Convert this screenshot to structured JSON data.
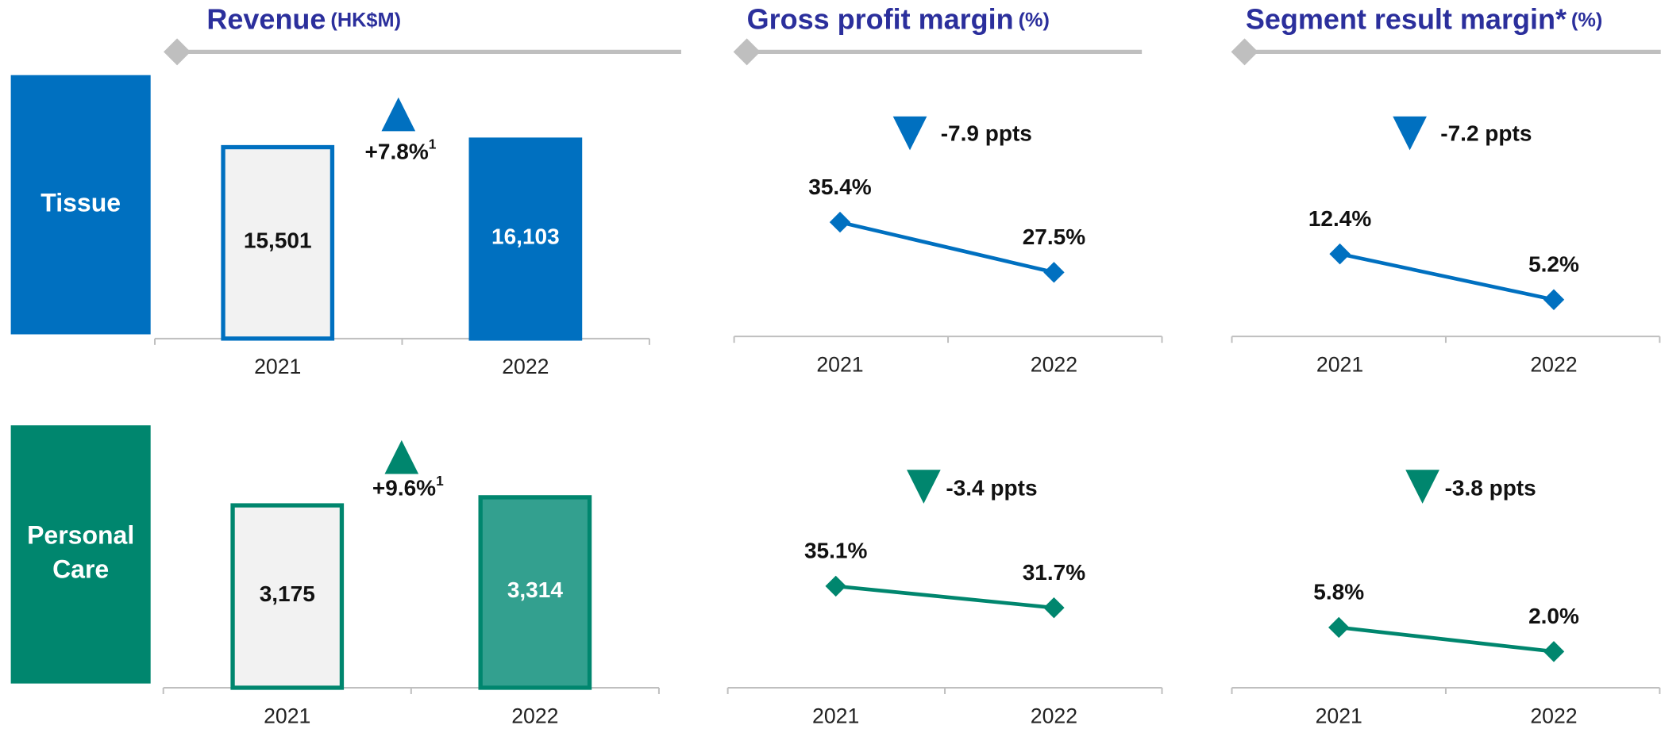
{
  "headers": [
    {
      "title": "Revenue",
      "unit": "(HK$M)"
    },
    {
      "title": "Gross profit margin",
      "unit": "(%)"
    },
    {
      "title": "Segment result margin*",
      "unit": "(%)"
    }
  ],
  "segments": [
    {
      "name": "Tissue",
      "color": "#0070c0"
    },
    {
      "name": "Personal Care",
      "color": "#00866e"
    }
  ],
  "chart_data": [
    {
      "type": "bar",
      "categories": [
        "2021",
        "2022"
      ],
      "values": [
        15501,
        16103
      ],
      "value_labels": [
        "15,501",
        "16,103"
      ],
      "bar_fills": [
        "#f2f2f2",
        "#0070c0"
      ],
      "edge_color": "#0070c0",
      "trend": "up",
      "annotation": "+7.8%",
      "annotation_note": "1"
    },
    {
      "type": "line",
      "categories": [
        "2021",
        "2022"
      ],
      "series": [
        {
          "color": "#0070c0",
          "values": [
            35.4,
            27.5
          ],
          "value_labels": [
            "35.4%",
            "27.5%"
          ]
        }
      ],
      "trend": "down",
      "annotation": "-7.9 ppts"
    },
    {
      "type": "line",
      "categories": [
        "2021",
        "2022"
      ],
      "series": [
        {
          "color": "#0070c0",
          "values": [
            12.4,
            5.2
          ],
          "value_labels": [
            "12.4%",
            "5.2%"
          ]
        }
      ],
      "trend": "down",
      "annotation": "-7.2 ppts"
    },
    {
      "type": "bar",
      "categories": [
        "2021",
        "2022"
      ],
      "values": [
        3175,
        3314
      ],
      "value_labels": [
        "3,175",
        "3,314"
      ],
      "bar_fills": [
        "#f2f2f2",
        "#33a08f"
      ],
      "edge_color": "#00866e",
      "trend": "up",
      "annotation": "+9.6%",
      "annotation_note": "1"
    },
    {
      "type": "line",
      "categories": [
        "2021",
        "2022"
      ],
      "series": [
        {
          "color": "#00866e",
          "values": [
            35.1,
            31.7
          ],
          "value_labels": [
            "35.1%",
            "31.7%"
          ]
        }
      ],
      "trend": "down",
      "annotation": "-3.4 ppts"
    },
    {
      "type": "line",
      "categories": [
        "2021",
        "2022"
      ],
      "series": [
        {
          "color": "#00866e",
          "values": [
            5.8,
            2.0
          ],
          "value_labels": [
            "5.8%",
            "2.0%"
          ]
        }
      ],
      "trend": "down",
      "annotation": "-3.8 ppts"
    }
  ]
}
